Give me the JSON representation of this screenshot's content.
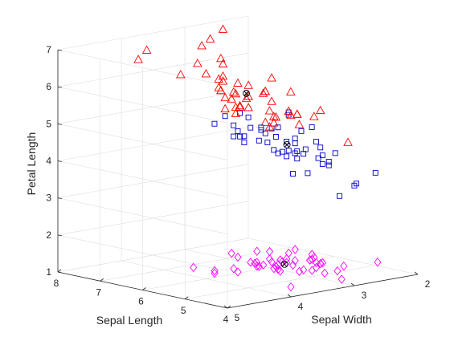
{
  "chart_data": {
    "type": "scatter3d",
    "title": "",
    "xlabel": "Sepal Length",
    "ylabel": "Sepal Width",
    "zlabel": "Petal Length",
    "xlim": [
      4,
      8
    ],
    "ylim": [
      2,
      5
    ],
    "zlim": [
      1,
      7
    ],
    "xticks": [
      4,
      5,
      6,
      7,
      8
    ],
    "yticks": [
      2,
      3,
      4,
      5
    ],
    "zticks": [
      1,
      2,
      3,
      4,
      5,
      6,
      7
    ],
    "grid": true,
    "series": [
      {
        "marker": "diamond",
        "color": "#ff00ff",
        "points": [
          [
            5.1,
            3.5,
            1.4
          ],
          [
            4.9,
            3.0,
            1.4
          ],
          [
            4.7,
            3.2,
            1.3
          ],
          [
            4.6,
            3.1,
            1.5
          ],
          [
            5.0,
            3.6,
            1.4
          ],
          [
            5.4,
            3.9,
            1.7
          ],
          [
            4.6,
            3.4,
            1.4
          ],
          [
            5.0,
            3.4,
            1.5
          ],
          [
            4.4,
            2.9,
            1.4
          ],
          [
            4.9,
            3.1,
            1.5
          ],
          [
            5.4,
            3.7,
            1.5
          ],
          [
            4.8,
            3.4,
            1.6
          ],
          [
            4.8,
            3.0,
            1.4
          ],
          [
            4.3,
            3.0,
            1.1
          ],
          [
            5.8,
            4.0,
            1.2
          ],
          [
            5.7,
            4.4,
            1.5
          ],
          [
            5.4,
            3.9,
            1.3
          ],
          [
            5.1,
            3.5,
            1.4
          ],
          [
            5.7,
            3.8,
            1.7
          ],
          [
            5.1,
            3.8,
            1.5
          ],
          [
            5.4,
            3.4,
            1.7
          ],
          [
            5.1,
            3.7,
            1.5
          ],
          [
            4.6,
            3.6,
            1.0
          ],
          [
            5.1,
            3.3,
            1.7
          ],
          [
            4.8,
            3.4,
            1.9
          ],
          [
            5.0,
            3.0,
            1.6
          ],
          [
            5.0,
            3.4,
            1.6
          ],
          [
            5.2,
            3.5,
            1.5
          ],
          [
            5.2,
            3.4,
            1.4
          ],
          [
            4.7,
            3.2,
            1.6
          ],
          [
            4.8,
            3.1,
            1.6
          ],
          [
            5.4,
            3.4,
            1.5
          ],
          [
            5.2,
            4.1,
            1.5
          ],
          [
            5.5,
            4.2,
            1.4
          ],
          [
            4.9,
            3.1,
            1.5
          ],
          [
            5.0,
            3.2,
            1.2
          ],
          [
            5.5,
            3.5,
            1.3
          ],
          [
            4.9,
            3.6,
            1.4
          ],
          [
            4.4,
            3.0,
            1.3
          ],
          [
            5.1,
            3.4,
            1.5
          ],
          [
            5.0,
            3.5,
            1.3
          ],
          [
            4.5,
            2.3,
            1.3
          ],
          [
            4.4,
            3.2,
            1.3
          ],
          [
            5.0,
            3.5,
            1.6
          ],
          [
            5.1,
            3.8,
            1.9
          ],
          [
            4.8,
            3.0,
            1.4
          ],
          [
            5.1,
            3.8,
            1.6
          ],
          [
            4.6,
            3.2,
            1.4
          ],
          [
            5.3,
            3.7,
            1.5
          ],
          [
            5.0,
            3.3,
            1.4
          ]
        ]
      },
      {
        "marker": "square",
        "color": "#0000cc",
        "points": [
          [
            7.0,
            3.2,
            4.7
          ],
          [
            6.4,
            3.2,
            4.5
          ],
          [
            6.9,
            3.1,
            4.9
          ],
          [
            5.5,
            2.3,
            4.0
          ],
          [
            6.5,
            2.8,
            4.6
          ],
          [
            5.7,
            2.8,
            4.5
          ],
          [
            6.3,
            3.3,
            4.7
          ],
          [
            4.9,
            2.4,
            3.3
          ],
          [
            6.6,
            2.9,
            4.6
          ],
          [
            5.2,
            2.7,
            3.9
          ],
          [
            5.0,
            2.0,
            3.5
          ],
          [
            5.9,
            3.0,
            4.2
          ],
          [
            6.0,
            2.2,
            4.0
          ],
          [
            6.1,
            2.9,
            4.7
          ],
          [
            5.6,
            2.9,
            3.6
          ],
          [
            6.7,
            3.1,
            4.4
          ],
          [
            5.6,
            3.0,
            4.5
          ],
          [
            5.8,
            2.7,
            4.1
          ],
          [
            6.2,
            2.2,
            4.5
          ],
          [
            5.6,
            2.5,
            3.9
          ],
          [
            5.9,
            3.2,
            4.8
          ],
          [
            6.1,
            2.8,
            4.0
          ],
          [
            6.3,
            2.5,
            4.9
          ],
          [
            6.1,
            2.8,
            4.7
          ],
          [
            6.4,
            2.9,
            4.3
          ],
          [
            6.6,
            3.0,
            4.4
          ],
          [
            6.8,
            2.8,
            4.8
          ],
          [
            6.7,
            3.0,
            5.0
          ],
          [
            6.0,
            2.9,
            4.5
          ],
          [
            5.7,
            2.6,
            3.5
          ],
          [
            5.5,
            2.4,
            3.8
          ],
          [
            5.5,
            2.4,
            3.7
          ],
          [
            5.8,
            2.7,
            3.9
          ],
          [
            6.0,
            2.7,
            5.1
          ],
          [
            5.4,
            3.0,
            4.5
          ],
          [
            6.0,
            3.4,
            4.5
          ],
          [
            6.7,
            3.1,
            4.7
          ],
          [
            6.3,
            2.3,
            4.4
          ],
          [
            5.6,
            3.0,
            4.1
          ],
          [
            5.5,
            2.5,
            4.0
          ],
          [
            5.5,
            2.6,
            4.4
          ],
          [
            6.1,
            3.0,
            4.6
          ],
          [
            5.8,
            2.6,
            4.0
          ],
          [
            5.0,
            2.3,
            3.3
          ],
          [
            5.6,
            2.7,
            4.2
          ],
          [
            5.7,
            3.0,
            4.2
          ],
          [
            5.7,
            2.9,
            4.2
          ],
          [
            6.2,
            2.9,
            4.3
          ],
          [
            5.1,
            2.5,
            3.0
          ],
          [
            5.7,
            2.8,
            4.1
          ]
        ]
      },
      {
        "marker": "triangle",
        "color": "#ff0000",
        "points": [
          [
            6.3,
            3.3,
            6.0
          ],
          [
            5.8,
            2.7,
            5.1
          ],
          [
            7.1,
            3.0,
            5.9
          ],
          [
            6.3,
            2.9,
            5.6
          ],
          [
            6.5,
            3.0,
            5.8
          ],
          [
            7.6,
            3.0,
            6.6
          ],
          [
            4.9,
            2.5,
            4.5
          ],
          [
            7.3,
            2.9,
            6.3
          ],
          [
            6.7,
            2.5,
            5.8
          ],
          [
            7.2,
            3.6,
            6.1
          ],
          [
            6.5,
            3.2,
            5.1
          ],
          [
            6.4,
            2.7,
            5.3
          ],
          [
            6.8,
            3.0,
            5.5
          ],
          [
            5.7,
            2.5,
            5.0
          ],
          [
            5.8,
            2.8,
            5.1
          ],
          [
            6.4,
            3.2,
            5.3
          ],
          [
            6.5,
            3.0,
            5.5
          ],
          [
            7.7,
            3.8,
            6.7
          ],
          [
            7.7,
            2.6,
            6.9
          ],
          [
            6.0,
            2.2,
            5.0
          ],
          [
            6.9,
            3.2,
            5.7
          ],
          [
            5.6,
            2.8,
            4.9
          ],
          [
            7.7,
            2.8,
            6.7
          ],
          [
            6.3,
            2.7,
            4.9
          ],
          [
            6.7,
            3.3,
            5.7
          ],
          [
            7.2,
            3.2,
            6.0
          ],
          [
            6.2,
            2.8,
            4.8
          ],
          [
            6.1,
            3.0,
            4.9
          ],
          [
            6.4,
            2.8,
            5.6
          ],
          [
            7.2,
            3.0,
            5.8
          ],
          [
            7.4,
            2.8,
            6.1
          ],
          [
            7.9,
            3.8,
            6.4
          ],
          [
            6.4,
            2.8,
            5.6
          ],
          [
            6.3,
            2.8,
            5.1
          ],
          [
            6.1,
            2.6,
            5.6
          ],
          [
            7.7,
            3.0,
            6.1
          ],
          [
            6.3,
            3.4,
            5.6
          ],
          [
            6.4,
            3.1,
            5.5
          ],
          [
            6.0,
            3.0,
            4.8
          ],
          [
            6.9,
            3.1,
            5.4
          ],
          [
            6.7,
            3.1,
            5.6
          ],
          [
            6.9,
            3.1,
            5.1
          ],
          [
            5.8,
            2.7,
            5.1
          ],
          [
            6.8,
            3.2,
            5.9
          ],
          [
            6.7,
            3.3,
            5.7
          ],
          [
            6.7,
            3.0,
            5.2
          ],
          [
            6.3,
            2.5,
            5.0
          ],
          [
            6.5,
            3.0,
            5.2
          ],
          [
            6.2,
            3.4,
            5.4
          ],
          [
            5.9,
            3.0,
            5.1
          ]
        ]
      }
    ],
    "centroids": {
      "marker": "circle-x",
      "color": "#000000",
      "points": [
        [
          5.006,
          3.428,
          1.462
        ],
        [
          5.936,
          2.77,
          4.26
        ],
        [
          6.588,
          2.974,
          5.552
        ]
      ]
    }
  }
}
